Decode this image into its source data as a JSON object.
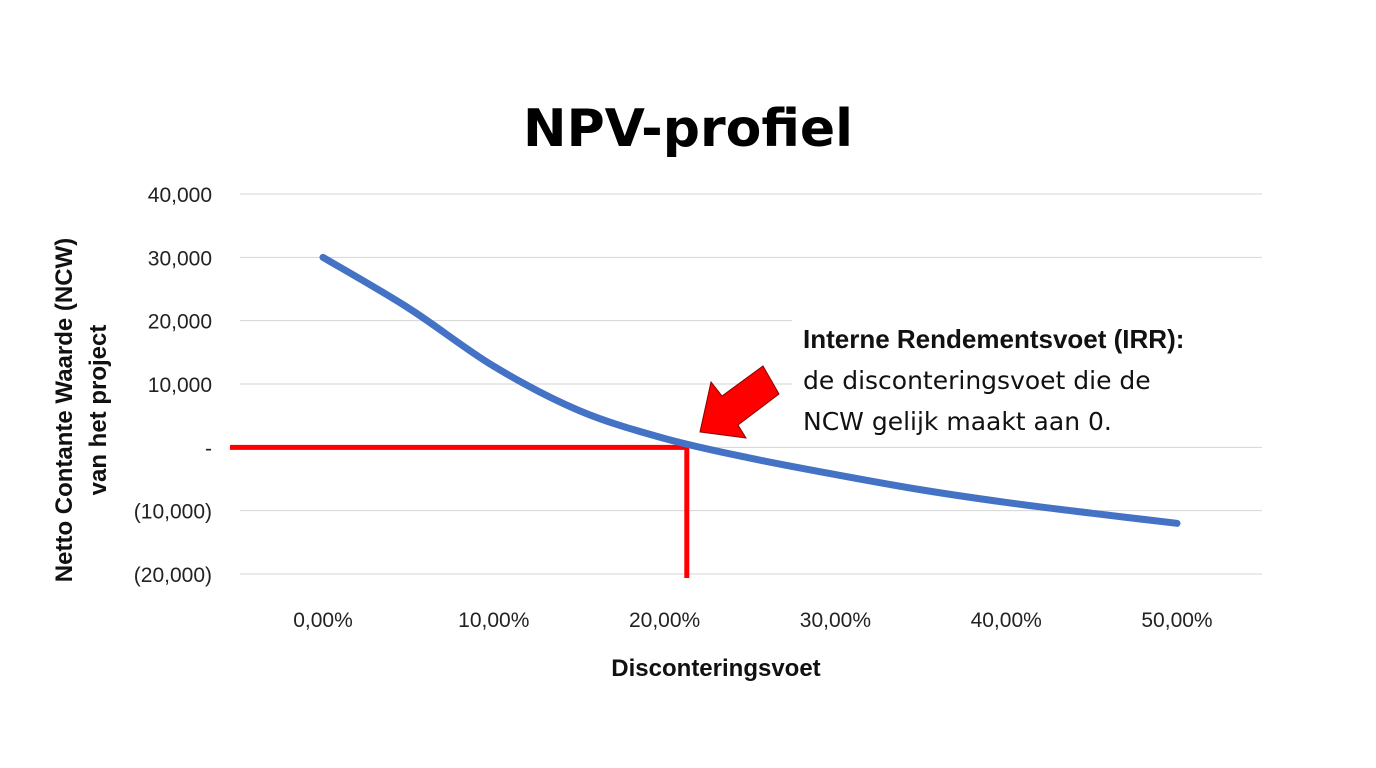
{
  "chart_data": {
    "type": "line",
    "title": "NPV-profiel",
    "xlabel": "Disconteringsvoet",
    "ylabel_lines": [
      "Netto Contante Waarde (NCW)",
      "van het project"
    ],
    "x_tick_labels": [
      "0,00%",
      "10,00%",
      "20,00%",
      "30,00%",
      "40,00%",
      "50,00%"
    ],
    "x_ticks": [
      0,
      10,
      20,
      30,
      40,
      50
    ],
    "y_tick_labels": [
      "40,000",
      "30,000",
      "20,000",
      "10,000",
      "-",
      "(10,000)",
      "(20,000)"
    ],
    "y_ticks": [
      40000,
      30000,
      20000,
      10000,
      0,
      -10000,
      -20000
    ],
    "xlim": [
      -5,
      55
    ],
    "ylim": [
      -20000,
      40000
    ],
    "grid": true,
    "series": [
      {
        "x": [
          0,
          5,
          10,
          15,
          20,
          25,
          30,
          35,
          40,
          45,
          50
        ],
        "y": [
          30000,
          22000,
          12800,
          5800,
          1400,
          -1700,
          -4300,
          -6700,
          -8700,
          -10400,
          -12000
        ],
        "color": "#4472C4"
      }
    ],
    "irr": 21.3,
    "irr_marker_color": "#FF0000",
    "annotation": {
      "heading": "Interne Rendementsvoet (IRR):",
      "lines": [
        "de disconteringsvoet die de",
        "NCW gelijk maakt aan 0."
      ]
    }
  }
}
